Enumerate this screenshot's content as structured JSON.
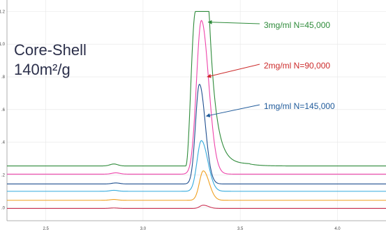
{
  "chart_data": {
    "type": "line",
    "title_lines": [
      "Core-Shell",
      "140m²/g"
    ],
    "xlim": [
      2.3,
      4.25
    ],
    "ylim": [
      -0.08,
      1.27
    ],
    "x_ticks": [
      "2.5",
      "3.0",
      "3.5",
      "4.0"
    ],
    "y_ticks": [
      ".0",
      ".2",
      ".4",
      ".6",
      ".8",
      "1.0",
      "1.2"
    ],
    "grid": true,
    "series": [
      {
        "color": "#cc3355",
        "offset": -0.005,
        "peak_x": 3.31,
        "peak_height": 0.02,
        "sigma": 0.018,
        "blip": {
          "x": 2.85,
          "h": 0.003
        },
        "x": [
          2.3,
          3.2,
          3.27,
          3.31,
          3.35,
          3.42,
          4.25
        ],
        "y": [
          -0.005,
          -0.005,
          0.002,
          0.015,
          0.002,
          -0.005,
          -0.005
        ]
      },
      {
        "color": "#f0a020",
        "offset": 0.045,
        "peak_x": 3.31,
        "peak_height": 0.18,
        "sigma": 0.02,
        "blip": {
          "x": 2.85,
          "h": 0.005
        },
        "x": [
          2.3,
          3.2,
          3.26,
          3.31,
          3.36,
          3.42,
          4.25
        ],
        "y": [
          0.045,
          0.046,
          0.08,
          0.225,
          0.08,
          0.046,
          0.045
        ]
      },
      {
        "color": "#33aadd",
        "offset": 0.1,
        "peak_x": 3.3,
        "peak_height": 0.31,
        "sigma": 0.022,
        "blip": {
          "x": 2.85,
          "h": 0.006
        },
        "x": [
          2.3,
          3.2,
          3.26,
          3.3,
          3.35,
          3.42,
          4.25
        ],
        "y": [
          0.1,
          0.102,
          0.18,
          0.41,
          0.18,
          0.102,
          0.1
        ]
      },
      {
        "color": "#1f4f8f",
        "offset": 0.145,
        "peak_x": 3.29,
        "peak_height": 0.61,
        "sigma": 0.02,
        "blip": {
          "x": 2.86,
          "h": 0.006
        },
        "x": [
          2.3,
          3.2,
          3.25,
          3.29,
          3.33,
          3.42,
          4.25
        ],
        "y": [
          0.145,
          0.148,
          0.3,
          0.755,
          0.3,
          0.148,
          0.145
        ]
      },
      {
        "color": "#ee44aa",
        "offset": 0.205,
        "peak_x": 3.3,
        "peak_height": 0.94,
        "sigma": 0.025,
        "blip": {
          "x": 2.86,
          "h": 0.008
        },
        "x": [
          2.3,
          3.2,
          3.25,
          3.3,
          3.36,
          3.45,
          4.25
        ],
        "y": [
          0.205,
          0.21,
          0.5,
          1.145,
          0.5,
          0.21,
          0.205
        ]
      },
      {
        "color": "#2e8b3a",
        "offset": 0.255,
        "flat_top": true,
        "peak_x": 3.3,
        "top_y": 1.2,
        "rise_start": 3.22,
        "plateau_start": 3.27,
        "plateau_end": 3.34,
        "tail_end": 3.55,
        "blip": {
          "x": 2.85,
          "h": 0.012
        },
        "x": [
          2.3,
          3.22,
          3.27,
          3.34,
          3.55,
          4.25
        ],
        "y": [
          0.255,
          0.26,
          1.2,
          1.2,
          0.265,
          0.255
        ]
      }
    ],
    "annotations": [
      {
        "text": "3mg/ml  N=45,000",
        "color": "#2e8b3a",
        "point_x": 3.335,
        "point_y": 1.135
      },
      {
        "text": "2mg/ml  N=90,000",
        "color": "#cc2b2b",
        "point_x": 3.33,
        "point_y": 0.8
      },
      {
        "text": "1mg/ml  N=145,000",
        "color": "#1f5a9a",
        "point_x": 3.325,
        "point_y": 0.56
      }
    ]
  }
}
